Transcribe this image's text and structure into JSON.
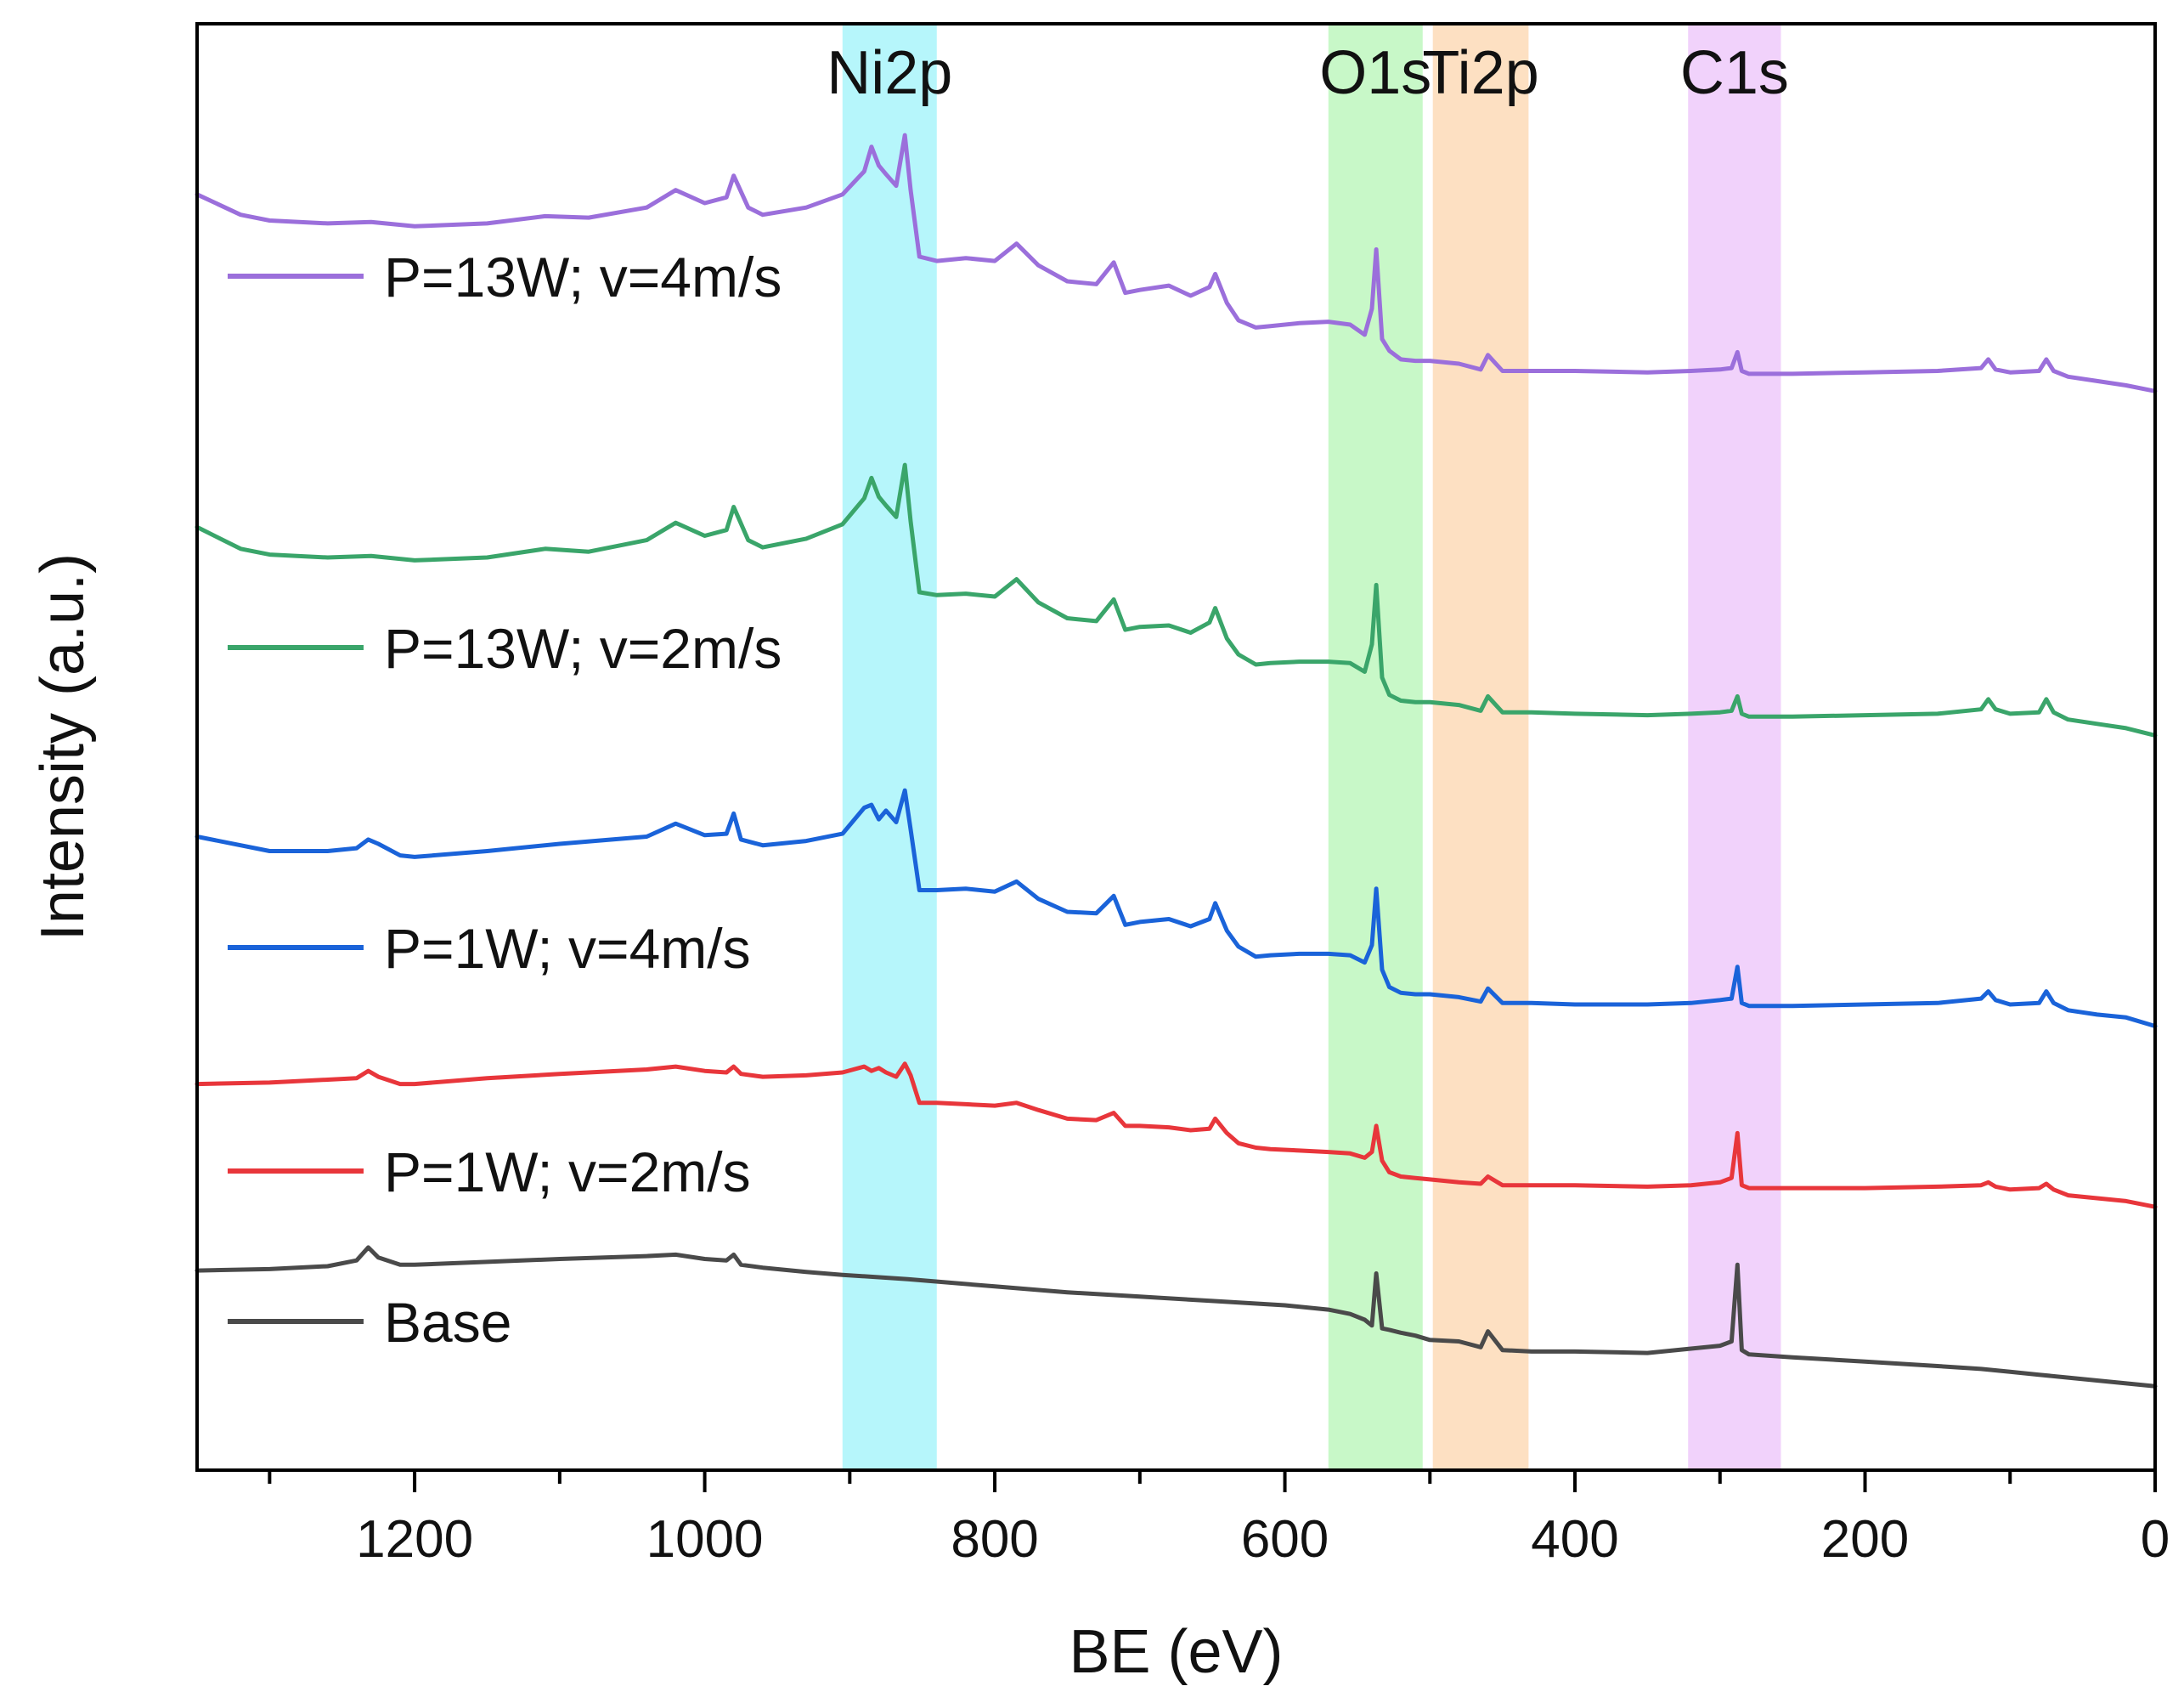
{
  "chart_data": {
    "type": "line",
    "title": "",
    "xlabel": "BE (eV)",
    "ylabel": "Intensity (a.u.)",
    "xlim": [
      1350,
      0
    ],
    "x_reversed": true,
    "ylim": [
      0,
      100
    ],
    "y_ticks_shown": false,
    "x_ticks": [
      1200,
      1000,
      800,
      600,
      400,
      200,
      0
    ],
    "x_tick_labels": [
      "1200",
      "1000",
      "800",
      "600",
      "400",
      "200",
      "0"
    ],
    "grid": false,
    "legend_position": "left",
    "bands": [
      {
        "label": "Ni2p",
        "from": 905,
        "to": 840,
        "color": "#b6f6fb"
      },
      {
        "label": "O1s",
        "from": 570,
        "to": 505,
        "color": "#c8f8c8"
      },
      {
        "label": "Ti2p",
        "from": 498,
        "to": 432,
        "color": "#fde0c2"
      },
      {
        "label": "C1s",
        "from": 322,
        "to": 258,
        "color": "#f1d2fb"
      }
    ],
    "series": [
      {
        "name": "P=13W; v=4m/s",
        "color": "#9b6fdb",
        "x": [
          1350,
          1320,
          1300,
          1260,
          1230,
          1200,
          1150,
          1110,
          1080,
          1040,
          1020,
          1000,
          985,
          980,
          970,
          960,
          930,
          905,
          890,
          885,
          880,
          875,
          868,
          862,
          858,
          852,
          840,
          820,
          800,
          785,
          770,
          750,
          730,
          718,
          710,
          700,
          680,
          665,
          652,
          648,
          640,
          632,
          620,
          610,
          590,
          570,
          555,
          545,
          540,
          537,
          533,
          528,
          520,
          510,
          500,
          480,
          465,
          460,
          450,
          430,
          400,
          350,
          320,
          300,
          292,
          288,
          285,
          280,
          250,
          200,
          150,
          120,
          115,
          110,
          100,
          80,
          75,
          70,
          60,
          40,
          20,
          0
        ],
        "y": [
          88.2,
          86.8,
          86.4,
          86.2,
          86.3,
          86.0,
          86.2,
          86.7,
          86.6,
          87.3,
          88.5,
          87.6,
          88.0,
          89.5,
          87.3,
          86.8,
          87.3,
          88.2,
          89.8,
          91.5,
          90.2,
          89.6,
          88.8,
          92.3,
          88.5,
          83.9,
          83.6,
          83.8,
          83.6,
          84.8,
          83.3,
          82.2,
          82.0,
          83.5,
          81.4,
          81.6,
          81.9,
          81.2,
          81.8,
          82.7,
          80.7,
          79.5,
          79.0,
          79.1,
          79.3,
          79.4,
          79.2,
          78.5,
          80.3,
          84.4,
          78.2,
          77.4,
          76.8,
          76.7,
          76.7,
          76.5,
          76.1,
          77.1,
          76.0,
          76.0,
          76.0,
          75.9,
          76.0,
          76.1,
          76.2,
          77.3,
          76.0,
          75.8,
          75.8,
          75.9,
          76.0,
          76.2,
          76.8,
          76.1,
          75.9,
          76.0,
          76.8,
          76.0,
          75.6,
          75.3,
          75.0,
          74.6
        ]
      },
      {
        "name": "P=13W; v=2m/s",
        "color": "#3aa56a",
        "x": [
          1350,
          1320,
          1300,
          1260,
          1230,
          1200,
          1150,
          1110,
          1080,
          1040,
          1020,
          1000,
          985,
          980,
          970,
          960,
          930,
          905,
          890,
          885,
          880,
          875,
          868,
          862,
          858,
          852,
          840,
          820,
          800,
          785,
          770,
          750,
          730,
          718,
          710,
          700,
          680,
          665,
          652,
          648,
          640,
          632,
          620,
          610,
          590,
          570,
          555,
          545,
          540,
          537,
          533,
          528,
          520,
          510,
          500,
          480,
          465,
          460,
          450,
          430,
          400,
          350,
          320,
          300,
          292,
          288,
          285,
          280,
          250,
          200,
          150,
          120,
          115,
          110,
          100,
          80,
          75,
          70,
          60,
          40,
          20,
          0
        ],
        "y": [
          65.2,
          63.7,
          63.3,
          63.1,
          63.2,
          62.9,
          63.1,
          63.7,
          63.5,
          64.3,
          65.5,
          64.6,
          65.0,
          66.6,
          64.3,
          63.8,
          64.4,
          65.4,
          67.2,
          68.6,
          67.3,
          66.7,
          65.9,
          69.5,
          65.6,
          60.7,
          60.5,
          60.6,
          60.4,
          61.6,
          60.0,
          58.9,
          58.7,
          60.2,
          58.1,
          58.3,
          58.4,
          57.9,
          58.6,
          59.6,
          57.5,
          56.4,
          55.7,
          55.8,
          55.9,
          55.9,
          55.8,
          55.2,
          57.1,
          61.2,
          54.8,
          53.6,
          53.2,
          53.1,
          53.1,
          52.9,
          52.5,
          53.5,
          52.4,
          52.4,
          52.3,
          52.2,
          52.3,
          52.4,
          52.5,
          53.5,
          52.3,
          52.1,
          52.1,
          52.2,
          52.3,
          52.6,
          53.3,
          52.6,
          52.3,
          52.4,
          53.3,
          52.4,
          51.9,
          51.6,
          51.3,
          50.8
        ]
      },
      {
        "name": "P=1W; v=4m/s",
        "color": "#1a63d9",
        "x": [
          1350,
          1300,
          1260,
          1240,
          1232,
          1225,
          1210,
          1200,
          1150,
          1100,
          1040,
          1020,
          1000,
          985,
          980,
          975,
          960,
          930,
          905,
          890,
          885,
          880,
          875,
          868,
          862,
          858,
          852,
          840,
          820,
          800,
          785,
          770,
          750,
          730,
          718,
          710,
          700,
          680,
          665,
          652,
          648,
          640,
          632,
          620,
          610,
          590,
          570,
          555,
          545,
          540,
          537,
          533,
          528,
          520,
          510,
          500,
          480,
          465,
          460,
          450,
          430,
          400,
          350,
          320,
          300,
          292,
          288,
          285,
          280,
          250,
          200,
          150,
          120,
          115,
          110,
          100,
          80,
          75,
          70,
          60,
          40,
          20,
          0
        ],
        "y": [
          43.8,
          42.8,
          42.8,
          43.0,
          43.6,
          43.3,
          42.5,
          42.4,
          42.8,
          43.3,
          43.8,
          44.7,
          43.9,
          44.0,
          45.4,
          43.6,
          43.2,
          43.5,
          44.0,
          45.8,
          46.0,
          45.0,
          45.6,
          44.8,
          47.0,
          44.3,
          40.1,
          40.1,
          40.2,
          40.0,
          40.7,
          39.5,
          38.6,
          38.5,
          39.7,
          37.7,
          37.9,
          38.1,
          37.6,
          38.1,
          39.2,
          37.3,
          36.2,
          35.5,
          35.6,
          35.7,
          35.7,
          35.6,
          35.1,
          36.3,
          40.2,
          34.6,
          33.4,
          33.0,
          32.9,
          32.9,
          32.7,
          32.4,
          33.3,
          32.3,
          32.3,
          32.2,
          32.2,
          32.3,
          32.5,
          32.6,
          34.8,
          32.3,
          32.1,
          32.1,
          32.2,
          32.3,
          32.6,
          33.1,
          32.5,
          32.2,
          32.3,
          33.1,
          32.3,
          31.8,
          31.5,
          31.3,
          30.7
        ]
      },
      {
        "name": "P=1W; v=2m/s",
        "color": "#e8363b",
        "x": [
          1350,
          1300,
          1260,
          1240,
          1232,
          1225,
          1210,
          1200,
          1150,
          1100,
          1040,
          1020,
          1000,
          985,
          980,
          975,
          960,
          930,
          905,
          890,
          885,
          880,
          875,
          868,
          862,
          858,
          852,
          840,
          820,
          800,
          785,
          770,
          750,
          730,
          718,
          710,
          700,
          680,
          665,
          652,
          648,
          640,
          632,
          620,
          610,
          590,
          570,
          555,
          545,
          540,
          537,
          533,
          528,
          520,
          510,
          500,
          480,
          465,
          460,
          450,
          430,
          400,
          350,
          320,
          300,
          292,
          288,
          285,
          280,
          250,
          200,
          150,
          120,
          115,
          110,
          100,
          80,
          75,
          70,
          60,
          40,
          20,
          0
        ],
        "y": [
          26.7,
          26.8,
          27.0,
          27.1,
          27.6,
          27.2,
          26.7,
          26.7,
          27.1,
          27.4,
          27.7,
          27.9,
          27.6,
          27.5,
          27.9,
          27.4,
          27.2,
          27.3,
          27.5,
          27.9,
          27.6,
          27.8,
          27.5,
          27.2,
          28.1,
          27.3,
          25.4,
          25.4,
          25.3,
          25.2,
          25.4,
          24.9,
          24.3,
          24.2,
          24.7,
          23.8,
          23.8,
          23.7,
          23.5,
          23.6,
          24.3,
          23.3,
          22.6,
          22.3,
          22.2,
          22.1,
          22.0,
          21.9,
          21.6,
          22.0,
          23.8,
          21.4,
          20.6,
          20.3,
          20.2,
          20.1,
          19.9,
          19.8,
          20.3,
          19.7,
          19.7,
          19.7,
          19.6,
          19.7,
          19.9,
          20.2,
          23.3,
          19.7,
          19.5,
          19.5,
          19.5,
          19.6,
          19.7,
          19.9,
          19.6,
          19.4,
          19.5,
          19.8,
          19.4,
          19.0,
          18.8,
          18.6,
          18.2
        ]
      },
      {
        "name": "Base",
        "color": "#4a4a4a",
        "x": [
          1350,
          1300,
          1260,
          1240,
          1232,
          1225,
          1210,
          1200,
          1150,
          1100,
          1040,
          1020,
          1000,
          985,
          980,
          975,
          960,
          930,
          905,
          860,
          800,
          750,
          700,
          650,
          600,
          570,
          555,
          545,
          540,
          537,
          533,
          528,
          520,
          510,
          500,
          480,
          465,
          460,
          450,
          430,
          400,
          350,
          320,
          300,
          292,
          288,
          285,
          280,
          250,
          200,
          150,
          120,
          100,
          80,
          60,
          40,
          20,
          0
        ],
        "y": [
          13.8,
          13.9,
          14.1,
          14.5,
          15.4,
          14.7,
          14.2,
          14.2,
          14.4,
          14.6,
          14.8,
          14.9,
          14.6,
          14.5,
          14.9,
          14.2,
          14.0,
          13.7,
          13.5,
          13.2,
          12.7,
          12.3,
          12.0,
          11.7,
          11.4,
          11.1,
          10.8,
          10.4,
          10.0,
          13.6,
          9.8,
          9.7,
          9.5,
          9.3,
          9.0,
          8.9,
          8.5,
          9.6,
          8.3,
          8.2,
          8.2,
          8.1,
          8.4,
          8.6,
          8.9,
          14.2,
          8.3,
          8.0,
          7.8,
          7.5,
          7.2,
          7.0,
          6.8,
          6.6,
          6.4,
          6.2,
          6.0,
          5.8
        ]
      }
    ]
  }
}
